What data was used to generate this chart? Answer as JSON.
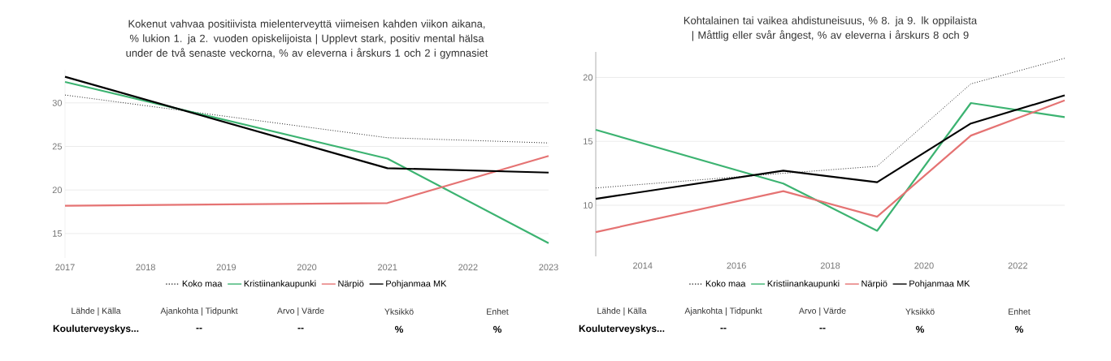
{
  "chart_data": [
    {
      "type": "line",
      "title": "Kokenut vahvaa positiivista mielenterveyttä viimeisen kahden viikon aikana, % lukion 1. ja 2. vuoden opiskelijoista | Upplevt stark, positiv mental hälsa under de två senaste veckorna, % av eleverna i årskurs 1 och 2 i gymnasiet",
      "xlim": [
        2017,
        2023
      ],
      "xticks": [
        2017,
        2018,
        2019,
        2020,
        2021,
        2022,
        2023
      ],
      "ylim": [
        12.2,
        33.8
      ],
      "yticks": [
        15,
        20,
        25,
        30
      ],
      "grid": "y",
      "legend": "bottom",
      "series": [
        {
          "name": "Koko maa",
          "color": "#222222",
          "line_style": "dotted",
          "x": [
            2017,
            2021,
            2023
          ],
          "values": [
            30.9,
            26.0,
            25.4
          ]
        },
        {
          "name": "Kristiinankaupunki",
          "color": "#3cb371",
          "line_style": "solid",
          "x": [
            2017,
            2021,
            2023
          ],
          "values": [
            32.4,
            23.6,
            13.9
          ]
        },
        {
          "name": "Närpiö",
          "color": "#e57373",
          "line_style": "solid",
          "x": [
            2017,
            2021,
            2023
          ],
          "values": [
            18.2,
            18.5,
            23.9
          ]
        },
        {
          "name": "Pohjanmaa MK",
          "color": "#000000",
          "line_style": "solid",
          "x": [
            2017,
            2021,
            2023
          ],
          "values": [
            33.0,
            22.5,
            22.0
          ]
        }
      ],
      "annotations": [
        "Lähde | Källa",
        "Ajankohta | Tidpunkt",
        "Arvo | Värde",
        "Yksikkö",
        "Enhet",
        "Kouluterveyskys...",
        "--",
        "--",
        "%",
        "%"
      ]
    },
    {
      "type": "line",
      "title": "Kohtalainen tai vaikea ahdistuneisuus, % 8. ja 9. lk oppilaista | Måttlig eller svår ångest, % av eleverna i årskurs 8 och 9",
      "xlim": [
        2013,
        2023
      ],
      "xticks": [
        2014,
        2016,
        2018,
        2020,
        2022
      ],
      "ylim": [
        6.0,
        22.0
      ],
      "yticks": [
        10,
        15,
        20
      ],
      "grid": "y",
      "legend": "bottom",
      "series": [
        {
          "name": "Koko maa",
          "color": "#222222",
          "line_style": "dotted",
          "x": [
            2013,
            2017,
            2019,
            2021,
            2023
          ],
          "values": [
            11.35,
            12.5,
            13.05,
            19.5,
            21.5
          ]
        },
        {
          "name": "Kristiinankaupunki",
          "color": "#3cb371",
          "line_style": "solid",
          "x": [
            2013,
            2017,
            2019,
            2021,
            2023
          ],
          "values": [
            15.9,
            11.7,
            8.0,
            18.0,
            16.9
          ]
        },
        {
          "name": "Närpiö",
          "color": "#e57373",
          "line_style": "solid",
          "x": [
            2013,
            2017,
            2019,
            2021,
            2023
          ],
          "values": [
            7.9,
            11.1,
            9.1,
            15.45,
            18.2
          ]
        },
        {
          "name": "Pohjanmaa MK",
          "color": "#000000",
          "line_style": "solid",
          "x": [
            2013,
            2017,
            2019,
            2021,
            2023
          ],
          "values": [
            10.5,
            12.7,
            11.8,
            16.4,
            18.6
          ]
        }
      ],
      "annotations": [
        "Lähde | Källa",
        "Ajankohta | Tidpunkt",
        "Arvo | Värde",
        "Yksikkö",
        "Enhet",
        "Kouluterveyskys...",
        "--",
        "--",
        "%",
        "%"
      ]
    }
  ]
}
